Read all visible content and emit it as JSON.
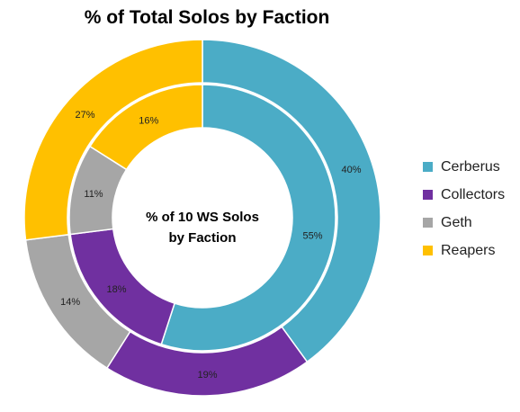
{
  "chart_data": {
    "type": "pie",
    "subtype": "double-donut",
    "title": "% of Total Solos by Faction",
    "center_label": [
      "% of 10 WS Solos",
      "by Faction"
    ],
    "legend_position": "right",
    "categories": [
      "Cerberus",
      "Collectors",
      "Geth",
      "Reapers"
    ],
    "colors": [
      "#4bacc6",
      "#7030a0",
      "#a6a6a6",
      "#ffc000"
    ],
    "series": [
      {
        "name": "% of Total Solos by Faction",
        "ring": "outer",
        "values": [
          40,
          19,
          14,
          27
        ],
        "labels": [
          "40%",
          "19%",
          "14%",
          "27%"
        ]
      },
      {
        "name": "% of 10 WS Solos by Faction",
        "ring": "inner",
        "values": [
          55,
          18,
          11,
          16
        ],
        "labels": [
          "55%",
          "18%",
          "11%",
          "16%"
        ]
      }
    ]
  }
}
